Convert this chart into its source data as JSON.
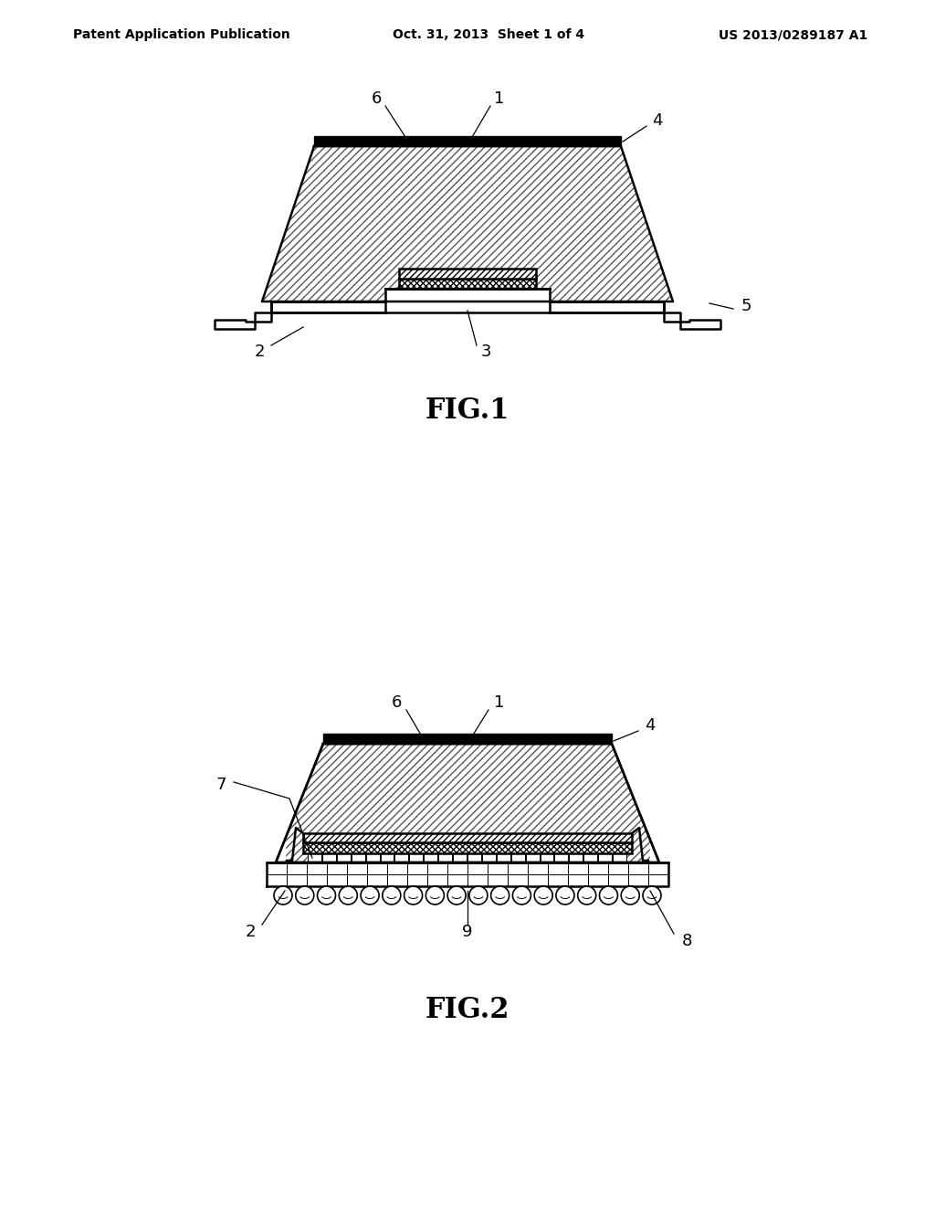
{
  "header_left": "Patent Application Publication",
  "header_center": "Oct. 31, 2013  Sheet 1 of 4",
  "header_right": "US 2013/0289187 A1",
  "fig1_label": "FIG.1",
  "fig2_label": "FIG.2",
  "bg_color": "#ffffff",
  "line_color": "#000000"
}
